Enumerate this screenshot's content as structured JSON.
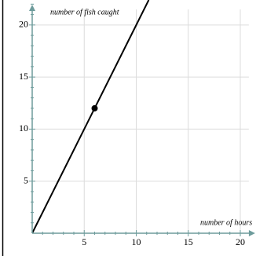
{
  "chart_data": {
    "type": "line",
    "x_label": "number of hours",
    "y_label": "number of fish caught",
    "xlim": [
      0,
      21.2
    ],
    "ylim": [
      0,
      22.4
    ],
    "xticks": [
      5,
      10,
      15,
      20
    ],
    "yticks": [
      5,
      10,
      15,
      20
    ],
    "xminorticks": [
      1,
      2,
      3,
      4,
      6,
      7,
      8,
      9,
      11,
      12,
      13,
      14,
      16,
      17,
      18,
      19,
      21
    ],
    "yminorticks": [
      1,
      2,
      3,
      4,
      6,
      7,
      8,
      9,
      11,
      12,
      13,
      14,
      16,
      17,
      18,
      19,
      21,
      22
    ],
    "grid": true,
    "axis_color": "#6e9c9c",
    "series": [
      {
        "type": "line",
        "color": "#000000",
        "x": [
          0,
          11.2
        ],
        "values": [
          0,
          22.4
        ]
      },
      {
        "type": "scatter",
        "color": "#000000",
        "x": [
          6
        ],
        "values": [
          12
        ]
      }
    ]
  }
}
